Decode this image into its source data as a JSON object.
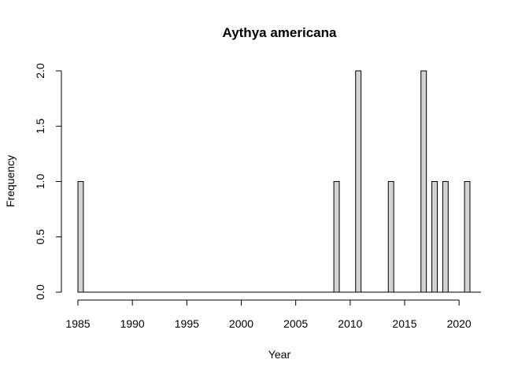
{
  "chart_data": {
    "type": "bar",
    "title": "Aythya americana",
    "xlabel": "Year",
    "ylabel": "Frequency",
    "xlim": [
      1985,
      2021
    ],
    "ylim": [
      0,
      2
    ],
    "xticks": [
      1985,
      1990,
      1995,
      2000,
      2005,
      2010,
      2015,
      2020
    ],
    "yticks": [
      "0.0",
      "0.5",
      "1.0",
      "1.5",
      "2.0"
    ],
    "bin_width": 0.5,
    "bins": [
      {
        "start": 1985.0,
        "count": 1
      },
      {
        "start": 2008.5,
        "count": 1
      },
      {
        "start": 2010.5,
        "count": 2
      },
      {
        "start": 2013.5,
        "count": 1
      },
      {
        "start": 2016.5,
        "count": 2
      },
      {
        "start": 2017.5,
        "count": 1
      },
      {
        "start": 2018.5,
        "count": 1
      },
      {
        "start": 2020.5,
        "count": 1
      }
    ],
    "bar_color": "#d3d3d3",
    "grid": false,
    "legend": "none"
  }
}
